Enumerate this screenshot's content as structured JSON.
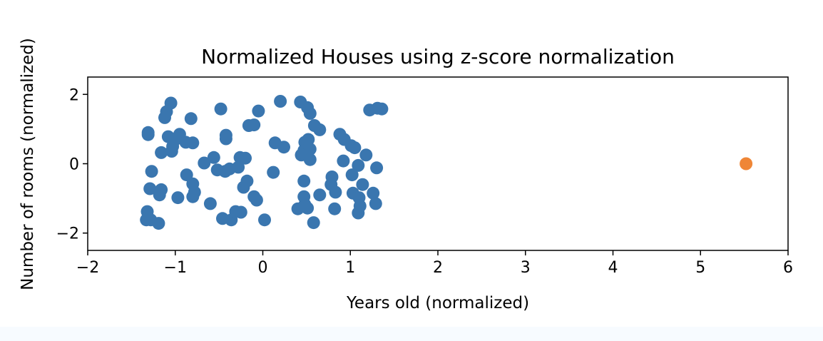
{
  "chart_data": {
    "type": "scatter",
    "title": "Normalized Houses using z-score normalization",
    "xlabel": "Years old (normalized)",
    "ylabel": "Number of rooms (normalized)",
    "xlim": [
      -2,
      6
    ],
    "ylim": [
      -2.5,
      2.5
    ],
    "xticks": [
      -2,
      -1,
      0,
      1,
      2,
      3,
      4,
      5,
      6
    ],
    "yticks": [
      -2,
      0,
      2
    ],
    "xtick_labels": [
      "−2",
      "−1",
      "0",
      "1",
      "2",
      "3",
      "4",
      "5",
      "6"
    ],
    "ytick_labels": [
      "−2",
      "0",
      "2"
    ],
    "grid": false,
    "series": [
      {
        "color": "#3a76af",
        "points": [
          [
            -1.31,
            0.9
          ],
          [
            -1.31,
            0.84
          ],
          [
            -1.05,
            1.75
          ],
          [
            -1.1,
            1.5
          ],
          [
            -1.12,
            1.33
          ],
          [
            -0.82,
            1.3
          ],
          [
            -0.95,
            0.85
          ],
          [
            -1.0,
            0.7
          ],
          [
            -1.08,
            0.78
          ],
          [
            -0.88,
            0.62
          ],
          [
            -0.8,
            0.6
          ],
          [
            -1.16,
            0.32
          ],
          [
            -1.04,
            0.36
          ],
          [
            -1.03,
            0.5
          ],
          [
            -0.67,
            0.02
          ],
          [
            -0.56,
            0.18
          ],
          [
            -0.52,
            -0.18
          ],
          [
            -0.43,
            -0.22
          ],
          [
            -0.38,
            -0.15
          ],
          [
            -0.28,
            -0.1
          ],
          [
            -0.48,
            1.58
          ],
          [
            -0.42,
            0.82
          ],
          [
            -0.42,
            0.72
          ],
          [
            -0.26,
            0.18
          ],
          [
            -0.2,
            0.16
          ],
          [
            -0.16,
            1.1
          ],
          [
            -0.1,
            1.12
          ],
          [
            -0.05,
            1.52
          ],
          [
            -1.27,
            -0.22
          ],
          [
            -1.29,
            -0.72
          ],
          [
            -1.16,
            -0.75
          ],
          [
            -1.18,
            -0.9
          ],
          [
            -0.97,
            -0.98
          ],
          [
            -0.87,
            -0.32
          ],
          [
            -0.8,
            -0.58
          ],
          [
            -0.78,
            -0.82
          ],
          [
            -0.8,
            -0.95
          ],
          [
            -0.6,
            -1.15
          ],
          [
            -0.22,
            -0.68
          ],
          [
            -0.18,
            -0.5
          ],
          [
            -0.1,
            -0.95
          ],
          [
            -0.07,
            -1.05
          ],
          [
            -1.32,
            -1.38
          ],
          [
            -1.33,
            -1.62
          ],
          [
            -1.28,
            -1.62
          ],
          [
            -1.19,
            -1.72
          ],
          [
            -0.46,
            -1.58
          ],
          [
            -0.36,
            -1.62
          ],
          [
            -0.31,
            -1.38
          ],
          [
            -0.25,
            -1.4
          ],
          [
            0.02,
            -1.62
          ],
          [
            0.14,
            0.6
          ],
          [
            0.24,
            0.48
          ],
          [
            0.2,
            1.8
          ],
          [
            0.43,
            1.78
          ],
          [
            0.51,
            1.62
          ],
          [
            0.54,
            1.45
          ],
          [
            0.59,
            1.1
          ],
          [
            0.65,
            0.98
          ],
          [
            0.48,
            0.62
          ],
          [
            0.52,
            0.7
          ],
          [
            0.47,
            0.38
          ],
          [
            0.54,
            0.42
          ],
          [
            0.44,
            0.25
          ],
          [
            0.54,
            0.12
          ],
          [
            0.12,
            -0.25
          ],
          [
            0.47,
            -0.5
          ],
          [
            0.79,
            -0.38
          ],
          [
            0.78,
            -0.6
          ],
          [
            0.83,
            -0.82
          ],
          [
            0.65,
            -0.9
          ],
          [
            0.47,
            -0.95
          ],
          [
            0.48,
            -1.18
          ],
          [
            0.4,
            -1.3
          ],
          [
            0.51,
            -1.28
          ],
          [
            0.58,
            -1.7
          ],
          [
            0.82,
            -1.3
          ],
          [
            0.88,
            0.85
          ],
          [
            0.93,
            0.7
          ],
          [
            1.01,
            0.52
          ],
          [
            1.05,
            0.46
          ],
          [
            0.92,
            0.08
          ],
          [
            1.02,
            -0.32
          ],
          [
            1.09,
            -0.05
          ],
          [
            1.14,
            -0.6
          ],
          [
            1.03,
            -0.85
          ],
          [
            1.1,
            -0.98
          ],
          [
            1.11,
            -1.22
          ],
          [
            1.09,
            -1.42
          ],
          [
            1.18,
            0.25
          ],
          [
            1.22,
            1.55
          ],
          [
            1.31,
            1.6
          ],
          [
            1.36,
            1.58
          ],
          [
            1.3,
            -0.12
          ],
          [
            1.26,
            -0.85
          ],
          [
            1.29,
            -1.15
          ]
        ]
      },
      {
        "color": "#ef8636",
        "points": [
          [
            5.52,
            0.0
          ]
        ]
      }
    ]
  }
}
